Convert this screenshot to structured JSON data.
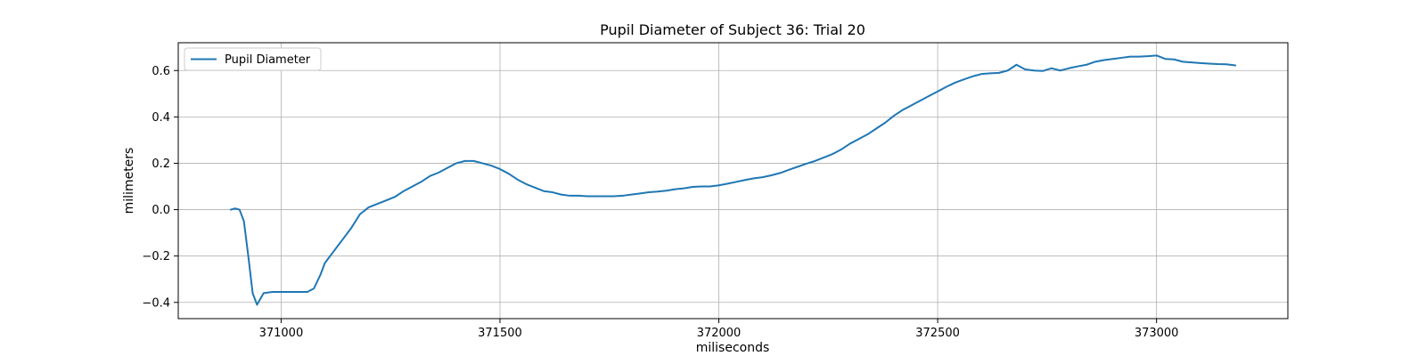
{
  "chart_data": {
    "type": "line",
    "title": "Pupil Diameter of Subject 36: Trial 20",
    "xlabel": "miliseconds",
    "ylabel": "milimeters",
    "xlim": [
      370765,
      373300
    ],
    "ylim": [
      -0.47,
      0.72
    ],
    "x_ticks": [
      371000,
      371500,
      372000,
      372500,
      373000
    ],
    "y_ticks": [
      -0.4,
      -0.2,
      0.0,
      0.2,
      0.4,
      0.6
    ],
    "x_tick_labels": [
      "371000",
      "371500",
      "372000",
      "372500",
      "373000"
    ],
    "y_tick_labels": [
      "−0.4",
      "−0.2",
      "0.0",
      "0.2",
      "0.4",
      "0.6"
    ],
    "grid": true,
    "legend_position": "top-left",
    "series": [
      {
        "name": "Pupil Diameter",
        "color": "#1f77b4",
        "x": [
          370885,
          370895,
          370905,
          370915,
          370925,
          370935,
          370945,
          370960,
          370980,
          371000,
          371030,
          371060,
          371075,
          371090,
          371100,
          371120,
          371140,
          371160,
          371180,
          371200,
          371220,
          371240,
          371260,
          371280,
          371300,
          371320,
          371340,
          371360,
          371380,
          371400,
          371420,
          371440,
          371460,
          371480,
          371500,
          371520,
          371540,
          371560,
          371580,
          371600,
          371620,
          371640,
          371660,
          371680,
          371700,
          371720,
          371740,
          371760,
          371780,
          371800,
          371820,
          371840,
          371860,
          371880,
          371900,
          371920,
          371940,
          371960,
          371980,
          372000,
          372020,
          372040,
          372060,
          372080,
          372100,
          372120,
          372140,
          372160,
          372180,
          372200,
          372220,
          372240,
          372260,
          372280,
          372300,
          372320,
          372340,
          372360,
          372380,
          372400,
          372420,
          372440,
          372460,
          372480,
          372500,
          372520,
          372540,
          372560,
          372580,
          372600,
          372620,
          372640,
          372660,
          372680,
          372700,
          372720,
          372740,
          372760,
          372780,
          372800,
          372820,
          372840,
          372860,
          372880,
          372900,
          372920,
          372940,
          372960,
          372980,
          373000,
          373020,
          373040,
          373060,
          373080,
          373100,
          373120,
          373140,
          373160,
          373180
        ],
        "y": [
          0.0,
          0.005,
          0.0,
          -0.05,
          -0.2,
          -0.36,
          -0.41,
          -0.36,
          -0.355,
          -0.355,
          -0.355,
          -0.355,
          -0.34,
          -0.28,
          -0.23,
          -0.18,
          -0.13,
          -0.08,
          -0.02,
          0.01,
          0.025,
          0.04,
          0.055,
          0.08,
          0.1,
          0.12,
          0.145,
          0.16,
          0.18,
          0.2,
          0.21,
          0.21,
          0.2,
          0.19,
          0.175,
          0.155,
          0.13,
          0.11,
          0.095,
          0.08,
          0.075,
          0.065,
          0.06,
          0.06,
          0.058,
          0.058,
          0.058,
          0.058,
          0.06,
          0.065,
          0.07,
          0.075,
          0.078,
          0.082,
          0.088,
          0.092,
          0.098,
          0.1,
          0.1,
          0.105,
          0.112,
          0.12,
          0.128,
          0.135,
          0.14,
          0.148,
          0.158,
          0.172,
          0.185,
          0.198,
          0.21,
          0.225,
          0.24,
          0.26,
          0.285,
          0.305,
          0.325,
          0.35,
          0.375,
          0.405,
          0.43,
          0.45,
          0.47,
          0.49,
          0.51,
          0.53,
          0.548,
          0.562,
          0.575,
          0.585,
          0.588,
          0.59,
          0.6,
          0.625,
          0.605,
          0.6,
          0.598,
          0.61,
          0.6,
          0.61,
          0.618,
          0.625,
          0.638,
          0.645,
          0.65,
          0.655,
          0.66,
          0.66,
          0.662,
          0.665,
          0.65,
          0.648,
          0.638,
          0.635,
          0.632,
          0.63,
          0.628,
          0.627,
          0.622
        ]
      }
    ]
  }
}
